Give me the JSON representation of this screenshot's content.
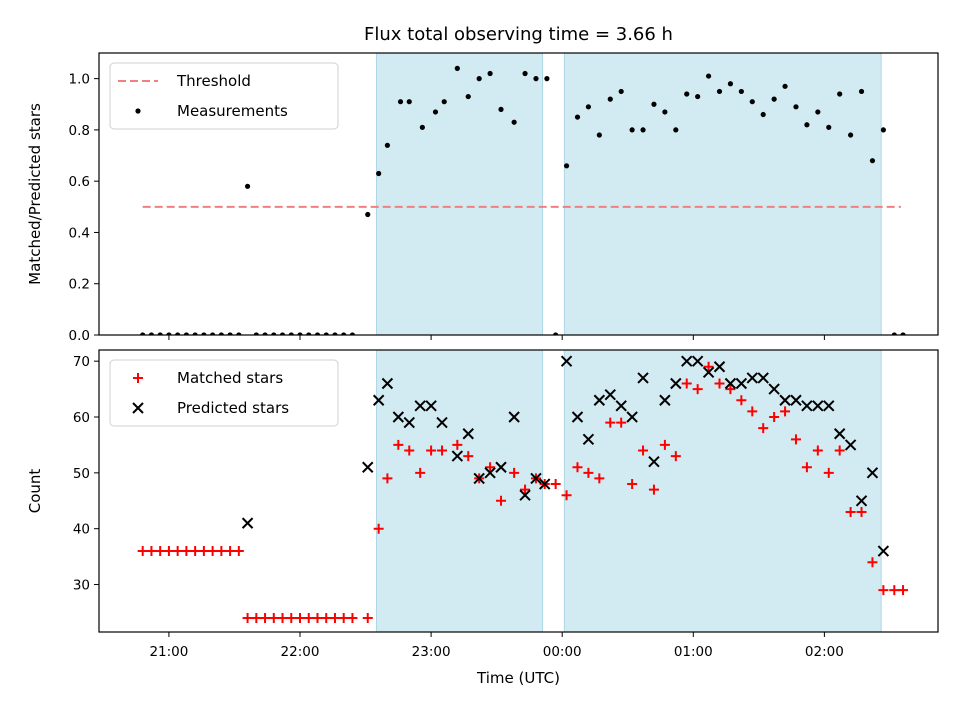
{
  "chart_data": [
    {
      "type": "scatter",
      "title": "Flux total observing time = 3.66 h",
      "xlabel": "",
      "ylabel": "Matched/Predicted stars",
      "x_axis": "time",
      "x_range": [
        "20:28",
        "02:52"
      ],
      "ylim": [
        0,
        1.1
      ],
      "yticks": [
        0.0,
        0.2,
        0.4,
        0.6,
        0.8,
        1.0
      ],
      "ytick_labels": [
        "0.0",
        "0.2",
        "0.4",
        "0.6",
        "0.8",
        "1.0"
      ],
      "shaded_intervals": [
        [
          "22:35",
          "23:51"
        ],
        [
          "00:01",
          "02:26"
        ]
      ],
      "shade_color": "#add8e6",
      "legend": {
        "position": "upper left",
        "entries": [
          "Threshold",
          "Measurements"
        ]
      },
      "threshold": {
        "name": "Threshold",
        "value": 0.5,
        "x_start": "20:48",
        "x_end": "02:35",
        "style": "dashed",
        "color": "#f08080"
      },
      "series": [
        {
          "name": "Measurements",
          "marker": "dot",
          "color": "#000000",
          "points": [
            [
              "20:48",
              0.0
            ],
            [
              "20:52",
              0.0
            ],
            [
              "20:56",
              0.0
            ],
            [
              "21:00",
              0.0
            ],
            [
              "21:04",
              0.0
            ],
            [
              "21:08",
              0.0
            ],
            [
              "21:12",
              0.0
            ],
            [
              "21:16",
              0.0
            ],
            [
              "21:20",
              0.0
            ],
            [
              "21:24",
              0.0
            ],
            [
              "21:28",
              0.0
            ],
            [
              "21:32",
              0.0
            ],
            [
              "21:36",
              0.58
            ],
            [
              "21:40",
              0.0
            ],
            [
              "21:44",
              0.0
            ],
            [
              "21:48",
              0.0
            ],
            [
              "21:52",
              0.0
            ],
            [
              "21:56",
              0.0
            ],
            [
              "22:00",
              0.0
            ],
            [
              "22:04",
              0.0
            ],
            [
              "22:08",
              0.0
            ],
            [
              "22:12",
              0.0
            ],
            [
              "22:16",
              0.0
            ],
            [
              "22:20",
              0.0
            ],
            [
              "22:24",
              0.0
            ],
            [
              "22:31",
              0.47
            ],
            [
              "22:36",
              0.63
            ],
            [
              "22:40",
              0.74
            ],
            [
              "22:46",
              0.91
            ],
            [
              "22:50",
              0.91
            ],
            [
              "22:56",
              0.81
            ],
            [
              "23:02",
              0.87
            ],
            [
              "23:06",
              0.91
            ],
            [
              "23:12",
              1.04
            ],
            [
              "23:17",
              0.93
            ],
            [
              "23:22",
              1.0
            ],
            [
              "23:27",
              1.02
            ],
            [
              "23:32",
              0.88
            ],
            [
              "23:38",
              0.83
            ],
            [
              "23:43",
              1.02
            ],
            [
              "23:48",
              1.0
            ],
            [
              "23:53",
              1.0
            ],
            [
              "23:57",
              0.0
            ],
            [
              "00:02",
              0.66
            ],
            [
              "00:07",
              0.85
            ],
            [
              "00:12",
              0.89
            ],
            [
              "00:17",
              0.78
            ],
            [
              "00:22",
              0.92
            ],
            [
              "00:27",
              0.95
            ],
            [
              "00:32",
              0.8
            ],
            [
              "00:37",
              0.8
            ],
            [
              "00:42",
              0.9
            ],
            [
              "00:47",
              0.87
            ],
            [
              "00:52",
              0.8
            ],
            [
              "00:57",
              0.94
            ],
            [
              "01:02",
              0.93
            ],
            [
              "01:07",
              1.01
            ],
            [
              "01:12",
              0.95
            ],
            [
              "01:17",
              0.98
            ],
            [
              "01:22",
              0.95
            ],
            [
              "01:27",
              0.91
            ],
            [
              "01:32",
              0.86
            ],
            [
              "01:37",
              0.92
            ],
            [
              "01:42",
              0.97
            ],
            [
              "01:47",
              0.89
            ],
            [
              "01:52",
              0.82
            ],
            [
              "01:57",
              0.87
            ],
            [
              "02:02",
              0.81
            ],
            [
              "02:07",
              0.94
            ],
            [
              "02:12",
              0.78
            ],
            [
              "02:17",
              0.95
            ],
            [
              "02:22",
              0.68
            ],
            [
              "02:27",
              0.8
            ],
            [
              "02:32",
              0.0
            ],
            [
              "02:36",
              0.0
            ]
          ]
        }
      ]
    },
    {
      "type": "scatter",
      "title": "",
      "xlabel": "Time (UTC)",
      "ylabel": "Count",
      "x_axis": "time",
      "x_range": [
        "20:28",
        "02:52"
      ],
      "ylim": [
        21.5,
        72
      ],
      "yticks": [
        30,
        40,
        50,
        60,
        70
      ],
      "ytick_labels": [
        "30",
        "40",
        "50",
        "60",
        "70"
      ],
      "xticks": [
        "21:00",
        "22:00",
        "23:00",
        "00:00",
        "01:00",
        "02:00"
      ],
      "xtick_labels": [
        "21:00",
        "22:00",
        "23:00",
        "00:00",
        "01:00",
        "02:00"
      ],
      "shaded_intervals": [
        [
          "22:35",
          "23:51"
        ],
        [
          "00:01",
          "02:26"
        ]
      ],
      "shade_color": "#add8e6",
      "legend": {
        "position": "upper left",
        "entries": [
          "Matched stars",
          "Predicted stars"
        ]
      },
      "series": [
        {
          "name": "Matched stars",
          "marker": "plus",
          "color": "#ff0000",
          "points": [
            [
              "20:48",
              36
            ],
            [
              "20:52",
              36
            ],
            [
              "20:56",
              36
            ],
            [
              "21:00",
              36
            ],
            [
              "21:04",
              36
            ],
            [
              "21:08",
              36
            ],
            [
              "21:12",
              36
            ],
            [
              "21:16",
              36
            ],
            [
              "21:20",
              36
            ],
            [
              "21:24",
              36
            ],
            [
              "21:28",
              36
            ],
            [
              "21:32",
              36
            ],
            [
              "21:36",
              24
            ],
            [
              "21:40",
              24
            ],
            [
              "21:44",
              24
            ],
            [
              "21:48",
              24
            ],
            [
              "21:52",
              24
            ],
            [
              "21:56",
              24
            ],
            [
              "22:00",
              24
            ],
            [
              "22:04",
              24
            ],
            [
              "22:08",
              24
            ],
            [
              "22:12",
              24
            ],
            [
              "22:16",
              24
            ],
            [
              "22:20",
              24
            ],
            [
              "22:24",
              24
            ],
            [
              "22:31",
              24
            ],
            [
              "22:36",
              40
            ],
            [
              "22:40",
              49
            ],
            [
              "22:45",
              55
            ],
            [
              "22:50",
              54
            ],
            [
              "22:55",
              50
            ],
            [
              "23:00",
              54
            ],
            [
              "23:05",
              54
            ],
            [
              "23:12",
              55
            ],
            [
              "23:17",
              53
            ],
            [
              "23:22",
              49
            ],
            [
              "23:27",
              51
            ],
            [
              "23:32",
              45
            ],
            [
              "23:38",
              50
            ],
            [
              "23:43",
              47
            ],
            [
              "23:48",
              49
            ],
            [
              "23:52",
              48
            ],
            [
              "23:57",
              48
            ],
            [
              "00:02",
              46
            ],
            [
              "00:07",
              51
            ],
            [
              "00:12",
              50
            ],
            [
              "00:17",
              49
            ],
            [
              "00:22",
              59
            ],
            [
              "00:27",
              59
            ],
            [
              "00:32",
              48
            ],
            [
              "00:37",
              54
            ],
            [
              "00:42",
              47
            ],
            [
              "00:47",
              55
            ],
            [
              "00:52",
              53
            ],
            [
              "00:57",
              66
            ],
            [
              "01:02",
              65
            ],
            [
              "01:07",
              69
            ],
            [
              "01:12",
              66
            ],
            [
              "01:17",
              65
            ],
            [
              "01:22",
              63
            ],
            [
              "01:27",
              61
            ],
            [
              "01:32",
              58
            ],
            [
              "01:37",
              60
            ],
            [
              "01:42",
              61
            ],
            [
              "01:47",
              56
            ],
            [
              "01:52",
              51
            ],
            [
              "01:57",
              54
            ],
            [
              "02:02",
              50
            ],
            [
              "02:07",
              54
            ],
            [
              "02:12",
              43
            ],
            [
              "02:17",
              43
            ],
            [
              "02:22",
              34
            ],
            [
              "02:27",
              29
            ],
            [
              "02:32",
              29
            ],
            [
              "02:36",
              29
            ]
          ]
        },
        {
          "name": "Predicted stars",
          "marker": "x",
          "color": "#000000",
          "points": [
            [
              "21:36",
              41
            ],
            [
              "22:31",
              51
            ],
            [
              "22:36",
              63
            ],
            [
              "22:40",
              66
            ],
            [
              "22:45",
              60
            ],
            [
              "22:50",
              59
            ],
            [
              "22:55",
              62
            ],
            [
              "23:00",
              62
            ],
            [
              "23:05",
              59
            ],
            [
              "23:12",
              53
            ],
            [
              "23:17",
              57
            ],
            [
              "23:22",
              49
            ],
            [
              "23:27",
              50
            ],
            [
              "23:32",
              51
            ],
            [
              "23:38",
              60
            ],
            [
              "23:43",
              46
            ],
            [
              "23:48",
              49
            ],
            [
              "23:52",
              48
            ],
            [
              "00:02",
              70
            ],
            [
              "00:07",
              60
            ],
            [
              "00:12",
              56
            ],
            [
              "00:17",
              63
            ],
            [
              "00:22",
              64
            ],
            [
              "00:27",
              62
            ],
            [
              "00:32",
              60
            ],
            [
              "00:37",
              67
            ],
            [
              "00:42",
              52
            ],
            [
              "00:47",
              63
            ],
            [
              "00:52",
              66
            ],
            [
              "00:57",
              70
            ],
            [
              "01:02",
              70
            ],
            [
              "01:07",
              68
            ],
            [
              "01:12",
              69
            ],
            [
              "01:17",
              66
            ],
            [
              "01:22",
              66
            ],
            [
              "01:27",
              67
            ],
            [
              "01:32",
              67
            ],
            [
              "01:37",
              65
            ],
            [
              "01:42",
              63
            ],
            [
              "01:47",
              63
            ],
            [
              "01:52",
              62
            ],
            [
              "01:57",
              62
            ],
            [
              "02:02",
              62
            ],
            [
              "02:07",
              57
            ],
            [
              "02:12",
              55
            ],
            [
              "02:17",
              45
            ],
            [
              "02:22",
              50
            ],
            [
              "02:27",
              36
            ]
          ]
        }
      ]
    }
  ]
}
